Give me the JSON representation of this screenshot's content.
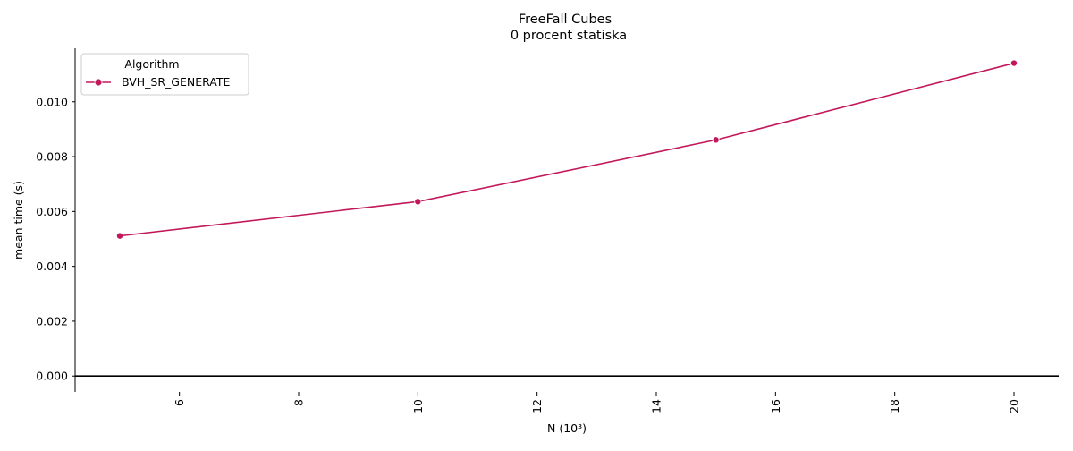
{
  "chart_data": {
    "type": "line",
    "title": "FreeFall Cubes",
    "subtitle": "0 procent statiska",
    "xlabel": "N (10³)",
    "ylabel": "mean time (s)",
    "x": [
      5,
      10,
      15,
      20
    ],
    "series": [
      {
        "name": "BVH_SR_GENERATE",
        "values": [
          0.00511,
          0.00636,
          0.00861,
          0.01141
        ],
        "color": "#c2185b"
      }
    ],
    "xlim": [
      4.25,
      20.75
    ],
    "ylim": [
      -0.00058,
      0.01195
    ],
    "xticks": [
      6,
      8,
      10,
      12,
      14,
      16,
      18,
      20
    ],
    "yticks": [
      0.0,
      0.002,
      0.004,
      0.006,
      0.008,
      0.01
    ],
    "ytick_labels": [
      "0.000",
      "0.002",
      "0.004",
      "0.006",
      "0.008",
      "0.010"
    ],
    "legend": {
      "title": "Algorithm",
      "placement": "top-left"
    },
    "grid": false,
    "marker": "circle",
    "zero_line": true
  }
}
